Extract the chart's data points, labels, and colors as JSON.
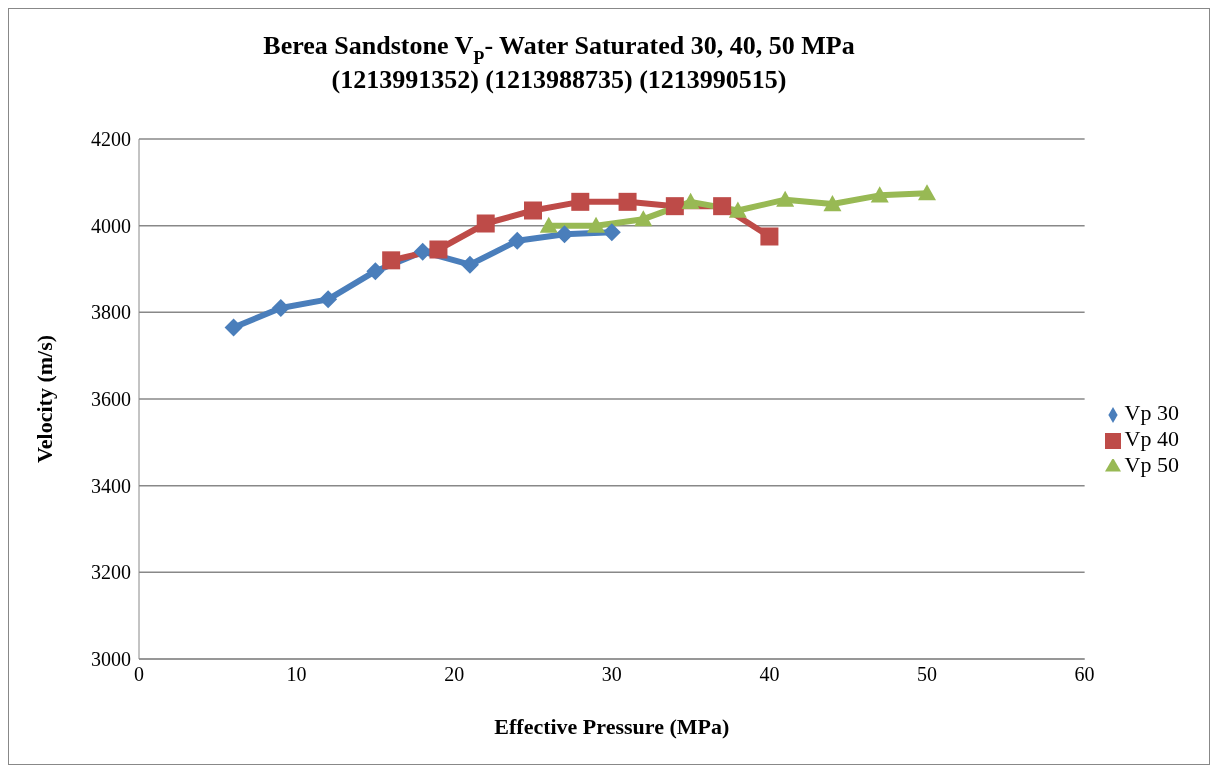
{
  "chart_data": {
    "type": "line",
    "title": "Berea Sandstone V$_{P}$- Water Saturated 30, 40, 50 MPa\n(1213991352) (1213988735) (1213990515)",
    "xlabel": "Effective Pressure (MPa)",
    "ylabel": "Velocity (m/s)",
    "series": [
      {
        "name": "Vp 30",
        "color": "#4a7ebb",
        "marker": "diamond",
        "x": [
          6,
          9,
          12,
          15,
          18,
          21,
          24,
          27,
          30
        ],
        "values": [
          3765,
          3810,
          3830,
          3895,
          3940,
          3910,
          3965,
          3980,
          3985
        ]
      },
      {
        "name": "Vp 40",
        "color": "#be4b48",
        "marker": "square",
        "x": [
          16,
          19,
          22,
          25,
          28,
          31,
          34,
          37,
          40
        ],
        "values": [
          3920,
          3945,
          4005,
          4035,
          4055,
          4055,
          4045,
          4045,
          3975
        ]
      },
      {
        "name": "Vp 50",
        "color": "#98b954",
        "marker": "triangle",
        "x": [
          26,
          29,
          32,
          35,
          38,
          41,
          44,
          47,
          50
        ],
        "values": [
          4000,
          4000,
          4015,
          4055,
          4035,
          4060,
          4050,
          4070,
          4075
        ]
      }
    ],
    "xlim": [
      0,
      60
    ],
    "xticks": [
      0,
      10,
      20,
      30,
      40,
      50,
      60
    ],
    "ylim": [
      3000,
      4200
    ],
    "yticks": [
      3000,
      3200,
      3400,
      3600,
      3800,
      4000,
      4200
    ],
    "grid": "y",
    "legend": "right",
    "line_style": "solid"
  }
}
